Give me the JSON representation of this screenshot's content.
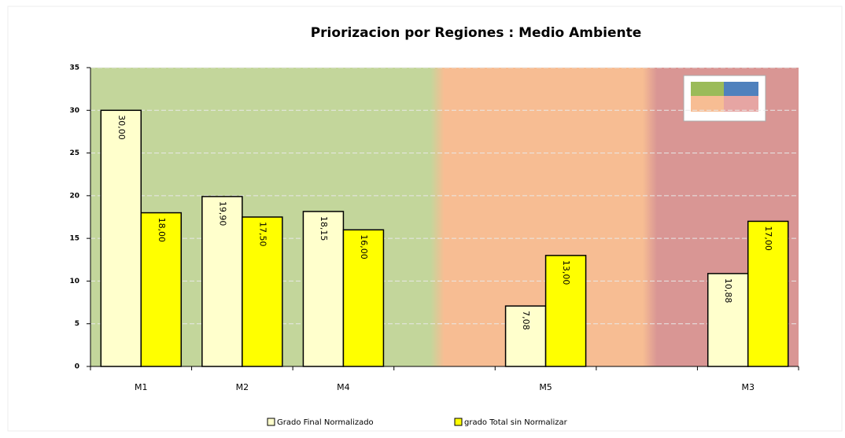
{
  "chart_data": {
    "type": "bar",
    "title": "Priorizacion por Regiones : Medio Ambiente",
    "categories": [
      "M1",
      "M2",
      "M4",
      null,
      "M5",
      null,
      "M3"
    ],
    "series": [
      {
        "name": "Grado Final Normalizado",
        "color": "#ffffcc",
        "values": [
          30,
          19.9,
          18.15,
          null,
          7.08,
          null,
          10.88
        ],
        "value_labels": [
          "30,00",
          "19,90",
          "18,15",
          null,
          "7,08",
          null,
          "10,88"
        ]
      },
      {
        "name": "grado Total sin Normalizar",
        "color": "#ffff00",
        "values": [
          18,
          17.5,
          16,
          null,
          13,
          null,
          17
        ],
        "value_labels": [
          "18,00",
          "17,50",
          "16,00",
          null,
          "13,00",
          null,
          "17,00"
        ]
      }
    ],
    "ylim": [
      0,
      35
    ],
    "yticks": [
      0,
      5,
      10,
      15,
      20,
      25,
      30,
      35
    ],
    "grid": true
  }
}
